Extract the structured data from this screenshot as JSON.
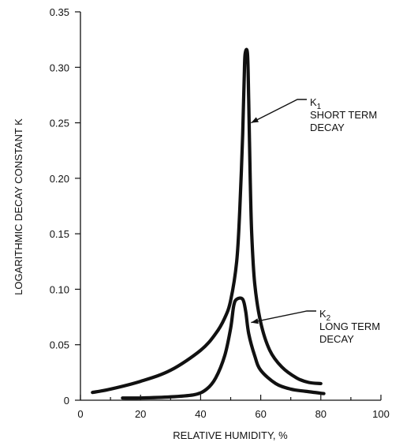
{
  "chart_data": {
    "type": "line",
    "xlabel": "RELATIVE HUMIDITY, %",
    "ylabel": "LOGARITHMIC DECAY CONSTANT K",
    "xlim": [
      0,
      100
    ],
    "ylim": [
      0,
      0.35
    ],
    "x_ticks": [
      "0",
      "20",
      "40",
      "60",
      "80",
      "100"
    ],
    "y_ticks": [
      "0",
      "0.05",
      "0.10",
      "0.15",
      "0.20",
      "0.25",
      "0.30",
      "0.35"
    ],
    "grid": false,
    "series": [
      {
        "name": "K1 SHORT TERM DECAY",
        "points": [
          [
            4,
            0.007
          ],
          [
            10,
            0.01
          ],
          [
            20,
            0.017
          ],
          [
            30,
            0.027
          ],
          [
            40,
            0.045
          ],
          [
            45,
            0.06
          ],
          [
            48,
            0.074
          ],
          [
            50,
            0.09
          ],
          [
            52,
            0.125
          ],
          [
            53,
            0.17
          ],
          [
            54,
            0.24
          ],
          [
            54.5,
            0.29
          ],
          [
            54.8,
            0.312
          ],
          [
            55.6,
            0.312
          ],
          [
            56,
            0.27
          ],
          [
            56.5,
            0.2
          ],
          [
            57,
            0.15
          ],
          [
            58,
            0.105
          ],
          [
            60,
            0.07
          ],
          [
            63,
            0.045
          ],
          [
            67,
            0.03
          ],
          [
            72,
            0.02
          ],
          [
            76,
            0.016
          ],
          [
            80,
            0.015
          ]
        ]
      },
      {
        "name": "K2 LONG TERM DECAY",
        "points": [
          [
            14,
            0.002
          ],
          [
            20,
            0.002
          ],
          [
            30,
            0.003
          ],
          [
            38,
            0.005
          ],
          [
            42,
            0.01
          ],
          [
            45,
            0.02
          ],
          [
            48,
            0.04
          ],
          [
            50,
            0.065
          ],
          [
            51,
            0.085
          ],
          [
            52,
            0.091
          ],
          [
            54,
            0.091
          ],
          [
            55,
            0.08
          ],
          [
            56,
            0.06
          ],
          [
            58,
            0.04
          ],
          [
            60,
            0.027
          ],
          [
            65,
            0.015
          ],
          [
            70,
            0.01
          ],
          [
            75,
            0.008
          ],
          [
            81,
            0.006
          ]
        ]
      }
    ],
    "annotations": [
      {
        "lines": [
          "K",
          "1",
          "SHORT TERM",
          "DECAY"
        ],
        "target": [
          56,
          0.25
        ]
      },
      {
        "lines": [
          "K",
          "2",
          "LONG TERM",
          "DECAY"
        ],
        "target": [
          56,
          0.07
        ]
      }
    ]
  }
}
